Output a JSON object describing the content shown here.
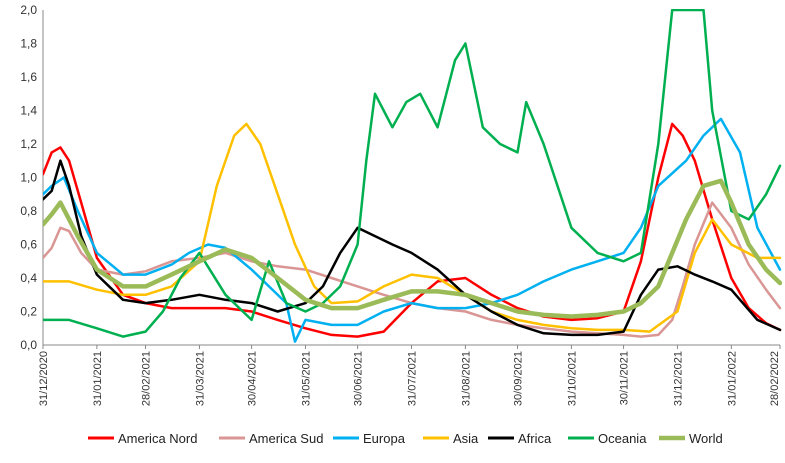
{
  "chart_data": {
    "type": "line",
    "x_tick_labels": [
      "31/12/2020",
      "31/01/2021",
      "28/02/2021",
      "31/03/2021",
      "30/04/2021",
      "31/05/2021",
      "30/06/2021",
      "31/07/2021",
      "31/08/2021",
      "30/09/2021",
      "31/10/2021",
      "30/11/2021",
      "31/12/2021",
      "31/01/2022",
      "28/02/2022"
    ],
    "y_tick_labels": [
      "0,0",
      "0,2",
      "0,4",
      "0,6",
      "0,8",
      "1,0",
      "1,2",
      "1,4",
      "1,6",
      "1,8",
      "2,0"
    ],
    "ylim": [
      0,
      2.0
    ],
    "grid": false,
    "legend_position": "bottom",
    "series": [
      {
        "name": "America Nord",
        "color": "#ff0000",
        "x": [
          "2020-12-31",
          "2021-01-05",
          "2021-01-10",
          "2021-01-15",
          "2021-01-22",
          "2021-01-31",
          "2021-02-15",
          "2021-02-28",
          "2021-03-15",
          "2021-03-31",
          "2021-04-15",
          "2021-04-30",
          "2021-05-15",
          "2021-05-31",
          "2021-06-15",
          "2021-06-30",
          "2021-07-15",
          "2021-07-31",
          "2021-08-15",
          "2021-08-31",
          "2021-09-15",
          "2021-09-30",
          "2021-10-15",
          "2021-10-31",
          "2021-11-15",
          "2021-11-30",
          "2021-12-10",
          "2021-12-20",
          "2021-12-28",
          "2022-01-03",
          "2022-01-10",
          "2022-01-20",
          "2022-01-31",
          "2022-02-10",
          "2022-02-20",
          "2022-02-28"
        ],
        "y": [
          1.02,
          1.15,
          1.18,
          1.1,
          0.85,
          0.52,
          0.3,
          0.25,
          0.22,
          0.22,
          0.22,
          0.2,
          0.15,
          0.1,
          0.06,
          0.05,
          0.08,
          0.25,
          0.38,
          0.4,
          0.3,
          0.22,
          0.17,
          0.15,
          0.16,
          0.2,
          0.5,
          1.0,
          1.32,
          1.25,
          1.1,
          0.75,
          0.4,
          0.22,
          0.13,
          0.09
        ]
      },
      {
        "name": "America Sud",
        "color": "#d99694",
        "x": [
          "2020-12-31",
          "2021-01-05",
          "2021-01-10",
          "2021-01-15",
          "2021-01-22",
          "2021-01-31",
          "2021-02-15",
          "2021-02-28",
          "2021-03-15",
          "2021-03-31",
          "2021-04-15",
          "2021-04-30",
          "2021-05-15",
          "2021-05-31",
          "2021-06-15",
          "2021-06-30",
          "2021-07-15",
          "2021-07-31",
          "2021-08-15",
          "2021-08-31",
          "2021-09-15",
          "2021-09-30",
          "2021-10-15",
          "2021-10-31",
          "2021-11-15",
          "2021-11-30",
          "2021-12-10",
          "2021-12-20",
          "2021-12-28",
          "2022-01-03",
          "2022-01-10",
          "2022-01-20",
          "2022-01-31",
          "2022-02-10",
          "2022-02-20",
          "2022-02-28"
        ],
        "y": [
          0.52,
          0.58,
          0.7,
          0.68,
          0.55,
          0.45,
          0.42,
          0.44,
          0.5,
          0.52,
          0.55,
          0.5,
          0.47,
          0.45,
          0.4,
          0.35,
          0.3,
          0.25,
          0.22,
          0.2,
          0.15,
          0.12,
          0.1,
          0.08,
          0.07,
          0.06,
          0.05,
          0.06,
          0.15,
          0.35,
          0.6,
          0.85,
          0.7,
          0.48,
          0.33,
          0.22
        ]
      },
      {
        "name": "Europa",
        "color": "#00b0f0",
        "x": [
          "2020-12-31",
          "2021-01-05",
          "2021-01-12",
          "2021-01-20",
          "2021-01-31",
          "2021-02-15",
          "2021-02-28",
          "2021-03-15",
          "2021-03-25",
          "2021-04-05",
          "2021-04-15",
          "2021-04-30",
          "2021-05-10",
          "2021-05-20",
          "2021-05-25",
          "2021-05-31",
          "2021-06-15",
          "2021-06-30",
          "2021-07-15",
          "2021-07-31",
          "2021-08-15",
          "2021-08-31",
          "2021-09-15",
          "2021-09-30",
          "2021-10-15",
          "2021-10-31",
          "2021-11-15",
          "2021-11-30",
          "2021-12-10",
          "2021-12-20",
          "2022-01-05",
          "2022-01-15",
          "2022-01-25",
          "2022-02-05",
          "2022-02-15",
          "2022-02-28"
        ],
        "y": [
          0.9,
          0.95,
          1.0,
          0.8,
          0.55,
          0.42,
          0.42,
          0.48,
          0.55,
          0.6,
          0.58,
          0.45,
          0.35,
          0.25,
          0.02,
          0.15,
          0.12,
          0.12,
          0.2,
          0.25,
          0.22,
          0.22,
          0.25,
          0.3,
          0.38,
          0.45,
          0.5,
          0.55,
          0.7,
          0.95,
          1.1,
          1.25,
          1.35,
          1.15,
          0.7,
          0.45
        ]
      },
      {
        "name": "Asia",
        "color": "#ffc000",
        "x": [
          "2020-12-31",
          "2021-01-15",
          "2021-01-31",
          "2021-02-15",
          "2021-02-28",
          "2021-03-15",
          "2021-03-31",
          "2021-04-10",
          "2021-04-20",
          "2021-04-27",
          "2021-05-05",
          "2021-05-15",
          "2021-05-25",
          "2021-06-05",
          "2021-06-15",
          "2021-06-30",
          "2021-07-15",
          "2021-07-31",
          "2021-08-15",
          "2021-08-31",
          "2021-09-15",
          "2021-09-30",
          "2021-10-15",
          "2021-10-31",
          "2021-11-15",
          "2021-11-30",
          "2021-12-15",
          "2021-12-31",
          "2022-01-10",
          "2022-01-20",
          "2022-01-31",
          "2022-02-15",
          "2022-02-28"
        ],
        "y": [
          0.38,
          0.38,
          0.33,
          0.3,
          0.3,
          0.35,
          0.5,
          0.95,
          1.25,
          1.32,
          1.2,
          0.9,
          0.6,
          0.35,
          0.25,
          0.26,
          0.35,
          0.42,
          0.4,
          0.3,
          0.2,
          0.15,
          0.12,
          0.1,
          0.09,
          0.09,
          0.08,
          0.2,
          0.55,
          0.75,
          0.6,
          0.52,
          0.52
        ]
      },
      {
        "name": "Africa",
        "color": "#000000",
        "x": [
          "2020-12-31",
          "2021-01-05",
          "2021-01-10",
          "2021-01-15",
          "2021-01-22",
          "2021-01-31",
          "2021-02-15",
          "2021-02-28",
          "2021-03-15",
          "2021-03-31",
          "2021-04-15",
          "2021-04-30",
          "2021-05-15",
          "2021-05-31",
          "2021-06-10",
          "2021-06-20",
          "2021-06-30",
          "2021-07-10",
          "2021-07-20",
          "2021-07-31",
          "2021-08-15",
          "2021-08-31",
          "2021-09-15",
          "2021-09-30",
          "2021-10-15",
          "2021-10-31",
          "2021-11-15",
          "2021-11-30",
          "2021-12-10",
          "2021-12-20",
          "2021-12-31",
          "2022-01-10",
          "2022-01-20",
          "2022-01-31",
          "2022-02-15",
          "2022-02-28"
        ],
        "y": [
          0.87,
          0.92,
          1.1,
          0.95,
          0.65,
          0.42,
          0.27,
          0.25,
          0.27,
          0.3,
          0.27,
          0.25,
          0.2,
          0.25,
          0.35,
          0.55,
          0.7,
          0.65,
          0.6,
          0.55,
          0.45,
          0.3,
          0.2,
          0.12,
          0.07,
          0.06,
          0.06,
          0.08,
          0.3,
          0.45,
          0.47,
          0.42,
          0.38,
          0.33,
          0.15,
          0.09
        ]
      },
      {
        "name": "Oceania",
        "color": "#00b050",
        "x": [
          "2020-12-31",
          "2021-01-15",
          "2021-01-31",
          "2021-02-15",
          "2021-02-28",
          "2021-03-10",
          "2021-03-20",
          "2021-03-31",
          "2021-04-15",
          "2021-04-30",
          "2021-05-10",
          "2021-05-20",
          "2021-05-31",
          "2021-06-10",
          "2021-06-20",
          "2021-06-30",
          "2021-07-05",
          "2021-07-10",
          "2021-07-20",
          "2021-07-28",
          "2021-08-05",
          "2021-08-15",
          "2021-08-25",
          "2021-08-31",
          "2021-09-10",
          "2021-09-20",
          "2021-09-30",
          "2021-10-05",
          "2021-10-15",
          "2021-10-31",
          "2021-11-15",
          "2021-11-30",
          "2021-12-10",
          "2021-12-20",
          "2021-12-28",
          "2022-01-05",
          "2022-01-15",
          "2022-01-20",
          "2022-01-31",
          "2022-02-10",
          "2022-02-20",
          "2022-02-28"
        ],
        "y": [
          0.15,
          0.15,
          0.1,
          0.05,
          0.08,
          0.2,
          0.4,
          0.55,
          0.3,
          0.15,
          0.5,
          0.25,
          0.2,
          0.25,
          0.35,
          0.6,
          1.1,
          1.5,
          1.3,
          1.45,
          1.5,
          1.3,
          1.7,
          1.8,
          1.3,
          1.2,
          1.15,
          1.45,
          1.2,
          0.7,
          0.55,
          0.5,
          0.55,
          1.2,
          2.0,
          2.0,
          2.0,
          1.4,
          0.8,
          0.75,
          0.9,
          1.07
        ]
      },
      {
        "name": "World",
        "color": "#9bbb59",
        "x": [
          "2020-12-31",
          "2021-01-05",
          "2021-01-10",
          "2021-01-20",
          "2021-01-31",
          "2021-02-15",
          "2021-02-28",
          "2021-03-15",
          "2021-03-31",
          "2021-04-15",
          "2021-04-30",
          "2021-05-15",
          "2021-05-31",
          "2021-06-15",
          "2021-06-30",
          "2021-07-15",
          "2021-07-31",
          "2021-08-15",
          "2021-08-31",
          "2021-09-15",
          "2021-09-30",
          "2021-10-15",
          "2021-10-31",
          "2021-11-15",
          "2021-11-30",
          "2021-12-10",
          "2021-12-20",
          "2022-01-05",
          "2022-01-15",
          "2022-01-25",
          "2022-01-31",
          "2022-02-10",
          "2022-02-20",
          "2022-02-28"
        ],
        "y": [
          0.72,
          0.78,
          0.85,
          0.65,
          0.45,
          0.35,
          0.35,
          0.42,
          0.5,
          0.57,
          0.52,
          0.4,
          0.27,
          0.22,
          0.22,
          0.27,
          0.32,
          0.32,
          0.3,
          0.25,
          0.2,
          0.18,
          0.17,
          0.18,
          0.2,
          0.25,
          0.35,
          0.75,
          0.95,
          0.98,
          0.85,
          0.6,
          0.45,
          0.37
        ]
      }
    ]
  }
}
